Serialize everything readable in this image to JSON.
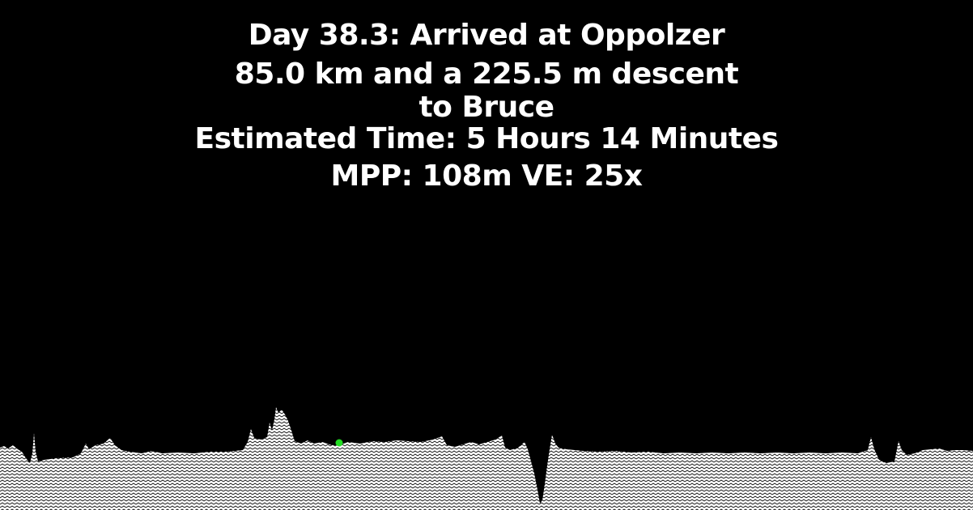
{
  "header": {
    "line1": "Day 38.3: Arrived at Oppolzer",
    "line2": "85.0 km and a 225.5 m descent",
    "line3": "to Bruce",
    "line4": "Estimated Time: 5 Hours 14 Minutes",
    "line5": "MPP: 108m VE: 25x"
  },
  "colors": {
    "background": "#000000",
    "text": "#ffffff",
    "terrain_fill": "#ffffff",
    "terrain_hatch": "#000000",
    "position_marker": "#22dd22"
  },
  "icons": {
    "marker": "position-marker-icon"
  }
}
